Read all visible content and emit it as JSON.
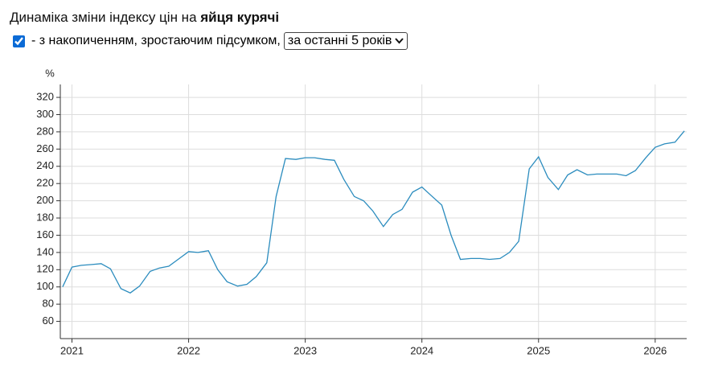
{
  "header": {
    "title": "Динаміка зміни індексу цін на",
    "product": "яйця курячі",
    "cumulative": true,
    "cumulative_label": "- з накопиченням, зростаючим підсумком,",
    "period": "за останні 5 років"
  },
  "chart_data": {
    "type": "line",
    "y_label": "%",
    "x": [
      2020.92,
      2021,
      2021.08,
      2021.17,
      2021.25,
      2021.33,
      2021.42,
      2021.5,
      2021.58,
      2021.67,
      2021.75,
      2021.83,
      2021.92,
      2022,
      2022.08,
      2022.17,
      2022.25,
      2022.33,
      2022.42,
      2022.5,
      2022.58,
      2022.67,
      2022.75,
      2022.83,
      2022.92,
      2023,
      2023.08,
      2023.17,
      2023.25,
      2023.33,
      2023.42,
      2023.5,
      2023.58,
      2023.67,
      2023.75,
      2023.83,
      2023.92,
      2024,
      2024.08,
      2024.17,
      2024.25,
      2024.33,
      2024.42,
      2024.5,
      2024.58,
      2024.67,
      2024.75,
      2024.83,
      2024.92,
      2025,
      2025.08,
      2025.17,
      2025.25,
      2025.33,
      2025.42,
      2025.5,
      2025.58,
      2025.67,
      2025.75,
      2025.83,
      2025.92,
      2026,
      2026.08,
      2026.17,
      2026.25
    ],
    "series": [
      {
        "name": "яйця курячі",
        "color": "#2b8cbe",
        "values": [
          100,
          123,
          125,
          126,
          127,
          121,
          98,
          93,
          101,
          118,
          122,
          124,
          133,
          141,
          140,
          142,
          120,
          106,
          101,
          103,
          112,
          128,
          205,
          249,
          248,
          250,
          250,
          248,
          247,
          225,
          205,
          200,
          188,
          170,
          184,
          190,
          210,
          216,
          206,
          195,
          160,
          132,
          133,
          133,
          132,
          133,
          140,
          153,
          237,
          251,
          227,
          213,
          230,
          236,
          230,
          231,
          231,
          231,
          229,
          235,
          250,
          262,
          266,
          268,
          281
        ]
      }
    ],
    "xlim": [
      2020.9,
      2026.27
    ],
    "xticks": [
      2021,
      2022,
      2023,
      2024,
      2025,
      2026
    ],
    "ylim": [
      40,
      335
    ],
    "yticks": [
      60,
      80,
      100,
      120,
      140,
      160,
      180,
      200,
      220,
      240,
      260,
      280,
      300,
      320
    ],
    "grid": true
  }
}
